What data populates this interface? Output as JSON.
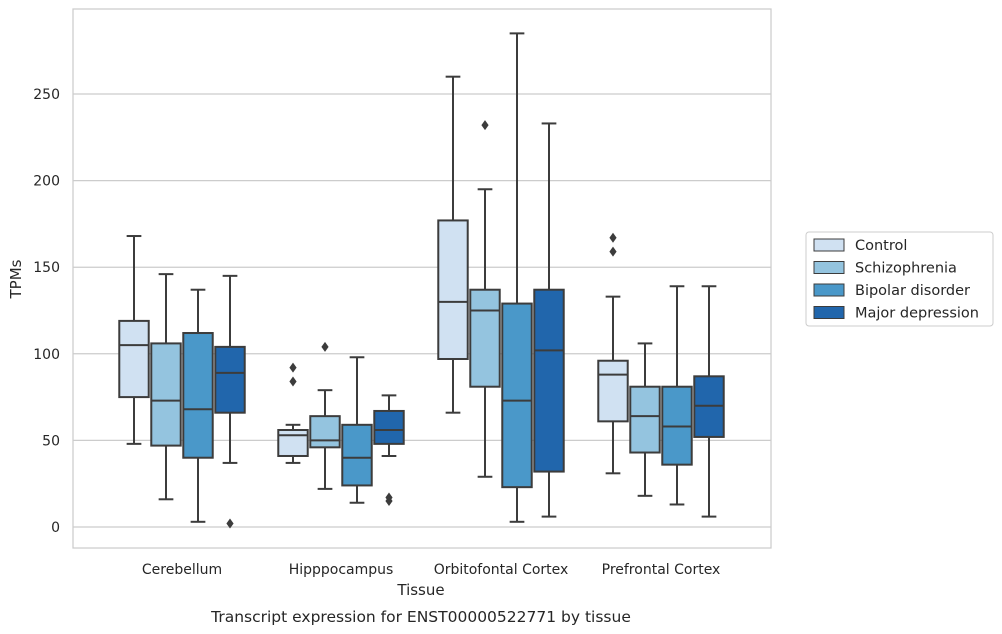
{
  "chart_data": {
    "type": "box",
    "title": "",
    "caption": "Transcript expression for ENST00000522771 by tissue",
    "xlabel": "Tissue",
    "ylabel": "TPMs",
    "ylim": [
      -12,
      300
    ],
    "yticks": [
      0,
      50,
      100,
      150,
      200,
      250
    ],
    "grid": true,
    "legend_position": "right",
    "categories": [
      "Cerebellum",
      "Hipppocampus",
      "Orbitofontal Cortex",
      "Prefrontal Cortex"
    ],
    "series": [
      {
        "name": "Control",
        "color": "#d0e1f2",
        "boxes": [
          {
            "whislo": 48,
            "q1": 75,
            "med": 105,
            "q3": 119,
            "whishi": 168,
            "fliers": []
          },
          {
            "whislo": 37,
            "q1": 41,
            "med": 53,
            "q3": 56,
            "whishi": 59,
            "fliers": [
              84,
              92
            ]
          },
          {
            "whislo": 66,
            "q1": 97,
            "med": 130,
            "q3": 177,
            "whishi": 260,
            "fliers": []
          },
          {
            "whislo": 31,
            "q1": 61,
            "med": 88,
            "q3": 96,
            "whishi": 133,
            "fliers": [
              159,
              167
            ]
          }
        ]
      },
      {
        "name": "Schizophrenia",
        "color": "#94c4df",
        "boxes": [
          {
            "whislo": 16,
            "q1": 47,
            "med": 73,
            "q3": 106,
            "whishi": 146,
            "fliers": []
          },
          {
            "whislo": 22,
            "q1": 46,
            "med": 50,
            "q3": 64,
            "whishi": 79,
            "fliers": [
              104
            ]
          },
          {
            "whislo": 29,
            "q1": 81,
            "med": 125,
            "q3": 137,
            "whishi": 195,
            "fliers": [
              232
            ]
          },
          {
            "whislo": 18,
            "q1": 43,
            "med": 64,
            "q3": 81,
            "whishi": 106,
            "fliers": []
          }
        ]
      },
      {
        "name": "Bipolar disorder",
        "color": "#4a98c9",
        "boxes": [
          {
            "whislo": 3,
            "q1": 40,
            "med": 68,
            "q3": 112,
            "whishi": 137,
            "fliers": []
          },
          {
            "whislo": 14,
            "q1": 24,
            "med": 40,
            "q3": 59,
            "whishi": 98,
            "fliers": []
          },
          {
            "whislo": 3,
            "q1": 23,
            "med": 73,
            "q3": 129,
            "whishi": 285,
            "fliers": []
          },
          {
            "whislo": 13,
            "q1": 36,
            "med": 58,
            "q3": 81,
            "whishi": 139,
            "fliers": []
          }
        ]
      },
      {
        "name": "Major depression",
        "color": "#2166ac",
        "boxes": [
          {
            "whislo": 37,
            "q1": 66,
            "med": 89,
            "q3": 104,
            "whishi": 145,
            "fliers": [
              2
            ]
          },
          {
            "whislo": 41,
            "q1": 48,
            "med": 56,
            "q3": 67,
            "whishi": 76,
            "fliers": [
              15,
              17
            ]
          },
          {
            "whislo": 6,
            "q1": 32,
            "med": 102,
            "q3": 137,
            "whishi": 233,
            "fliers": []
          },
          {
            "whislo": 6,
            "q1": 52,
            "med": 70,
            "q3": 87,
            "whishi": 139,
            "fliers": []
          }
        ]
      }
    ]
  }
}
